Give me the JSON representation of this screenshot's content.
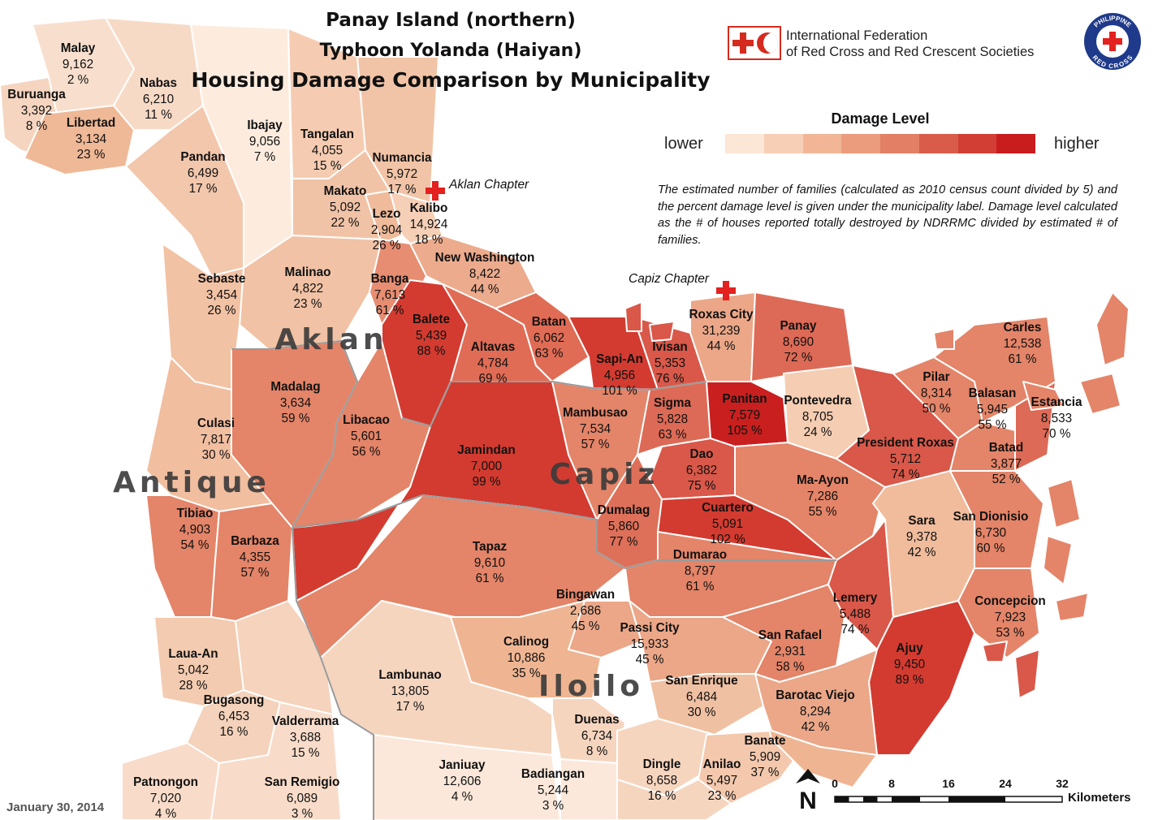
{
  "title": {
    "line1": "Panay Island (northern)",
    "line2": "Typhoon Yolanda (Haiyan)",
    "line3": "Housing Damage Comparison by Municipality"
  },
  "ifrc": {
    "line1": "International Federation",
    "line2": "of Red Cross and Red Crescent Societies"
  },
  "prc_logo": {
    "top_text": "PHILIPPINE",
    "bottom_text": "RED CROSS"
  },
  "legend": {
    "title": "Damage Level",
    "lower": "lower",
    "higher": "higher",
    "colors": [
      "#fce6d6",
      "#f7cfb6",
      "#f2b697",
      "#eb9c7d",
      "#e27f65",
      "#d95c4b",
      "#d23d34",
      "#c91c1d"
    ]
  },
  "note": "The estimated number of families (calculated as 2010 census count divided by 5) and the percent damage level is given under the municipality label. Damage level calculated as the # of houses reported totally destroyed by NDRRMC divided by estimated # of families.",
  "date": "January 30, 2014",
  "chapters": {
    "aklan": "Aklan Chapter",
    "capiz": "Capiz Chapter"
  },
  "provinces": {
    "aklan": "Aklan",
    "antique": "Antique",
    "capiz": "Capiz",
    "iloilo": "Iloilo"
  },
  "scale": {
    "ticks": [
      "0",
      "8",
      "16",
      "24",
      "32"
    ],
    "unit": "Kilometers"
  },
  "north_label": "N",
  "municipalities": [
    {
      "name": "Malay",
      "families": "9,162",
      "pct": "2 %"
    },
    {
      "name": "Nabas",
      "families": "6,210",
      "pct": "11 %"
    },
    {
      "name": "Buruanga",
      "families": "3,392",
      "pct": "8 %"
    },
    {
      "name": "Libertad",
      "families": "3,134",
      "pct": "23 %"
    },
    {
      "name": "Ibajay",
      "families": "9,056",
      "pct": "7 %"
    },
    {
      "name": "Tangalan",
      "families": "4,055",
      "pct": "15 %"
    },
    {
      "name": "Pandan",
      "families": "6,499",
      "pct": "17 %"
    },
    {
      "name": "Numancia",
      "families": "5,972",
      "pct": "17 %"
    },
    {
      "name": "Makato",
      "families": "5,092",
      "pct": "22 %"
    },
    {
      "name": "Lezo",
      "families": "2,904",
      "pct": "26 %"
    },
    {
      "name": "Kalibo",
      "families": "14,924",
      "pct": "18 %"
    },
    {
      "name": "New Washington",
      "families": "8,422",
      "pct": "44 %"
    },
    {
      "name": "Sebaste",
      "families": "3,454",
      "pct": "26 %"
    },
    {
      "name": "Malinao",
      "families": "4,822",
      "pct": "23 %"
    },
    {
      "name": "Banga",
      "families": "7,613",
      "pct": "61 %"
    },
    {
      "name": "Balete",
      "families": "5,439",
      "pct": "88 %"
    },
    {
      "name": "Batan",
      "families": "6,062",
      "pct": "63 %"
    },
    {
      "name": "Roxas City",
      "families": "31,239",
      "pct": "44 %"
    },
    {
      "name": "Panay",
      "families": "8,690",
      "pct": "72 %"
    },
    {
      "name": "Carles",
      "families": "12,538",
      "pct": "61 %"
    },
    {
      "name": "Altavas",
      "families": "4,784",
      "pct": "69 %"
    },
    {
      "name": "Ivisan",
      "families": "5,353",
      "pct": "76 %"
    },
    {
      "name": "Sapi-An",
      "families": "4,956",
      "pct": "101 %"
    },
    {
      "name": "Madalag",
      "families": "3,634",
      "pct": "59 %"
    },
    {
      "name": "Pilar",
      "families": "8,314",
      "pct": "50 %"
    },
    {
      "name": "Balasan",
      "families": "5,945",
      "pct": "55 %"
    },
    {
      "name": "Estancia",
      "families": "8,533",
      "pct": "70 %"
    },
    {
      "name": "Panitan",
      "families": "7,579",
      "pct": "105 %"
    },
    {
      "name": "Pontevedra",
      "families": "8,705",
      "pct": "24 %"
    },
    {
      "name": "Mambusao",
      "families": "7,534",
      "pct": "57 %"
    },
    {
      "name": "Sigma",
      "families": "5,828",
      "pct": "63 %"
    },
    {
      "name": "Culasi",
      "families": "7,817",
      "pct": "30 %"
    },
    {
      "name": "Libacao",
      "families": "5,601",
      "pct": "56 %"
    },
    {
      "name": "President Roxas",
      "families": "5,712",
      "pct": "74 %"
    },
    {
      "name": "Batad",
      "families": "3,877",
      "pct": "52 %"
    },
    {
      "name": "Jamindan",
      "families": "7,000",
      "pct": "99 %"
    },
    {
      "name": "Dao",
      "families": "6,382",
      "pct": "75 %"
    },
    {
      "name": "Ma-Ayon",
      "families": "7,286",
      "pct": "55 %"
    },
    {
      "name": "Tibiao",
      "families": "4,903",
      "pct": "54 %"
    },
    {
      "name": "Cuartero",
      "families": "5,091",
      "pct": "102 %"
    },
    {
      "name": "Sara",
      "families": "9,378",
      "pct": "42 %"
    },
    {
      "name": "San Dionisio",
      "families": "6,730",
      "pct": "60 %"
    },
    {
      "name": "Dumalag",
      "families": "5,860",
      "pct": "77 %"
    },
    {
      "name": "Barbaza",
      "families": "4,355",
      "pct": "57 %"
    },
    {
      "name": "Tapaz",
      "families": "9,610",
      "pct": "61 %"
    },
    {
      "name": "Dumarao",
      "families": "8,797",
      "pct": "61 %"
    },
    {
      "name": "Bingawan",
      "families": "2,686",
      "pct": "45 %"
    },
    {
      "name": "Lemery",
      "families": "5,488",
      "pct": "74 %"
    },
    {
      "name": "Concepcion",
      "families": "7,923",
      "pct": "53 %"
    },
    {
      "name": "Passi City",
      "families": "15,933",
      "pct": "45 %"
    },
    {
      "name": "Calinog",
      "families": "10,886",
      "pct": "35 %"
    },
    {
      "name": "San Rafael",
      "families": "2,931",
      "pct": "58 %"
    },
    {
      "name": "Ajuy",
      "families": "9,450",
      "pct": "89 %"
    },
    {
      "name": "Laua-An",
      "families": "5,042",
      "pct": "28 %"
    },
    {
      "name": "Lambunao",
      "families": "13,805",
      "pct": "17 %"
    },
    {
      "name": "San Enrique",
      "families": "6,484",
      "pct": "30 %"
    },
    {
      "name": "Barotac Viejo",
      "families": "8,294",
      "pct": "42 %"
    },
    {
      "name": "Bugasong",
      "families": "6,453",
      "pct": "16 %"
    },
    {
      "name": "Valderrama",
      "families": "3,688",
      "pct": "15 %"
    },
    {
      "name": "Duenas",
      "families": "6,734",
      "pct": "8 %"
    },
    {
      "name": "Banate",
      "families": "5,909",
      "pct": "37 %"
    },
    {
      "name": "Janiuay",
      "families": "12,606",
      "pct": "4 %"
    },
    {
      "name": "Dingle",
      "families": "8,658",
      "pct": "16 %"
    },
    {
      "name": "Anilao",
      "families": "5,497",
      "pct": "23 %"
    },
    {
      "name": "Badiangan",
      "families": "5,244",
      "pct": "3 %"
    },
    {
      "name": "Patnongon",
      "families": "7,020",
      "pct": "4 %"
    },
    {
      "name": "San Remigio",
      "families": "6,089",
      "pct": "3 %"
    }
  ]
}
